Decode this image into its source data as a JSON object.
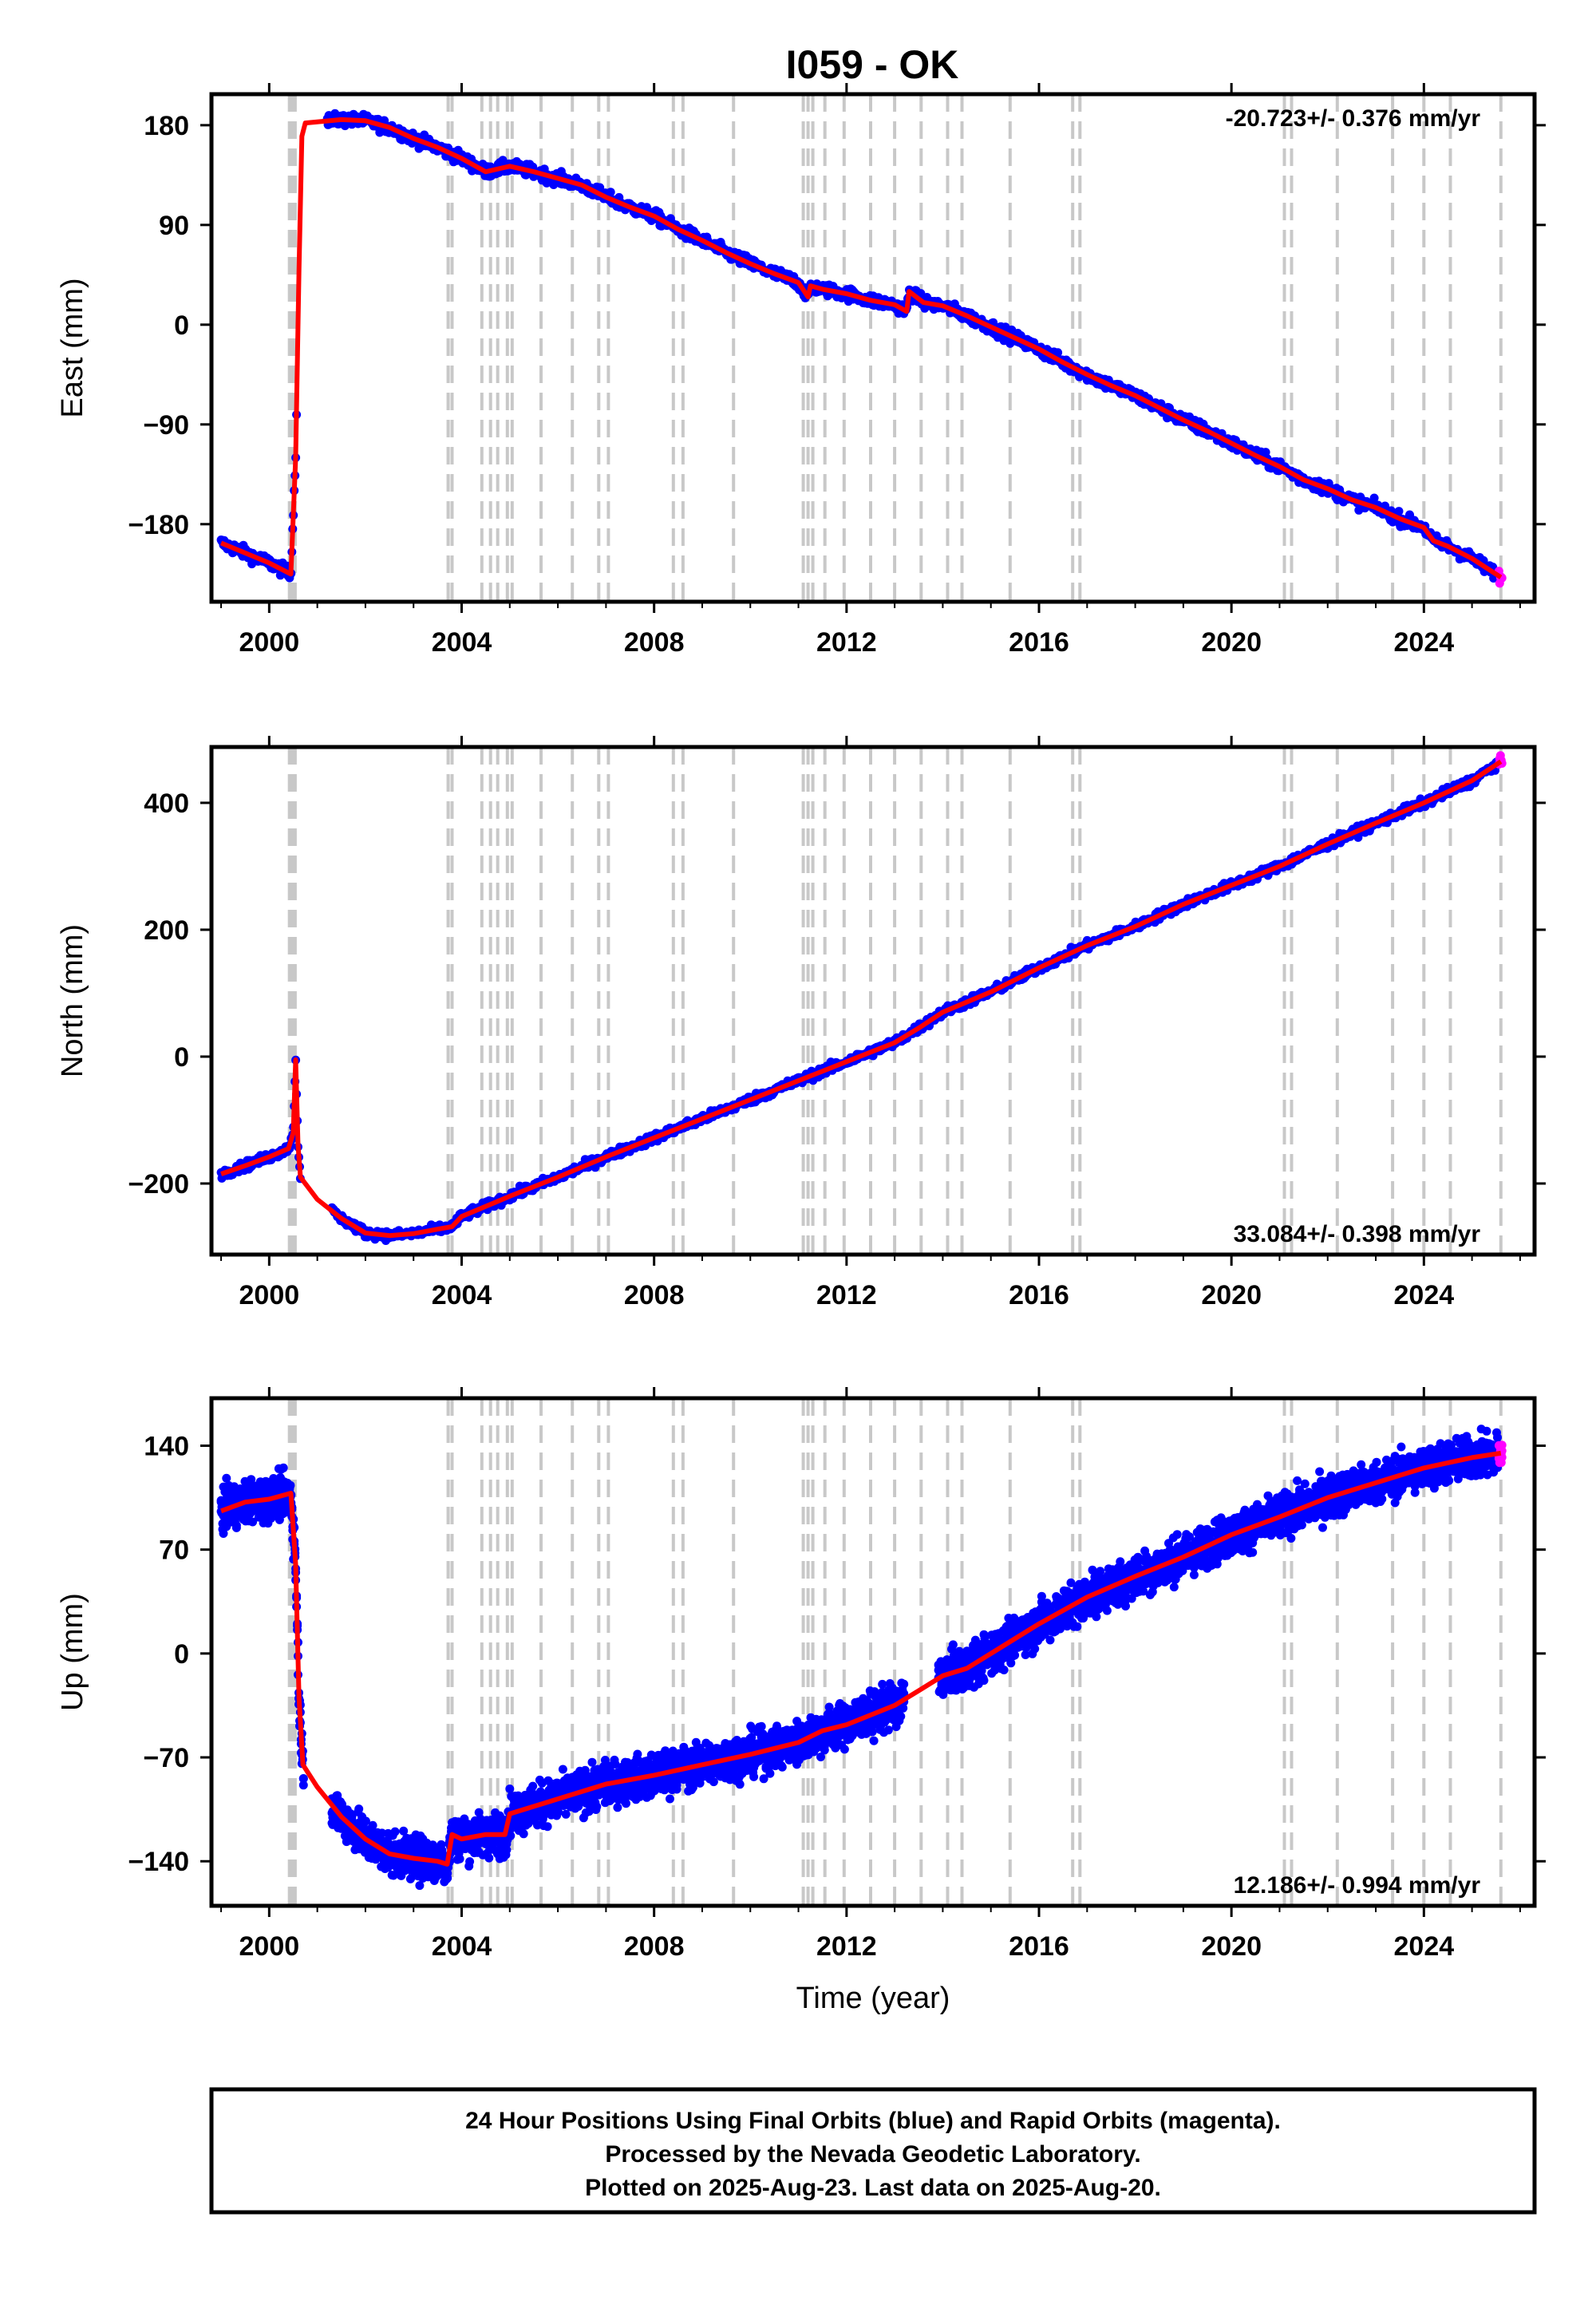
{
  "title": "I059 - OK",
  "chart_data": [
    {
      "type": "scatter",
      "component": "East",
      "ylabel": "East (mm)",
      "xlabel": "",
      "xlim": [
        1998.8,
        2026.3
      ],
      "ylim": [
        -250,
        208
      ],
      "xticks": [
        2000,
        2004,
        2008,
        2012,
        2016,
        2020,
        2024
      ],
      "yticks": [
        -180,
        -90,
        0,
        90,
        180
      ],
      "ytick_labels": [
        "−180",
        "−90",
        "0",
        "90",
        "180"
      ],
      "rate": "-20.723+/- 0.376 mm/yr",
      "trend": [
        [
          1999.0,
          -197
        ],
        [
          1999.5,
          -206
        ],
        [
          2000.0,
          -215
        ],
        [
          2000.45,
          -225
        ],
        [
          2000.55,
          -120
        ],
        [
          2000.62,
          50
        ],
        [
          2000.68,
          170
        ],
        [
          2000.75,
          182
        ],
        [
          2001.5,
          185
        ],
        [
          2002.0,
          184
        ],
        [
          2002.5,
          178
        ],
        [
          2003.0,
          168
        ],
        [
          2003.5,
          160
        ],
        [
          2004.0,
          150
        ],
        [
          2004.5,
          138
        ],
        [
          2005.0,
          143
        ],
        [
          2005.5,
          138
        ],
        [
          2006.0,
          132
        ],
        [
          2006.5,
          126
        ],
        [
          2007.0,
          115
        ],
        [
          2007.5,
          106
        ],
        [
          2008.0,
          98
        ],
        [
          2008.5,
          86
        ],
        [
          2009.0,
          76
        ],
        [
          2009.5,
          65
        ],
        [
          2010.0,
          55
        ],
        [
          2010.5,
          46
        ],
        [
          2011.0,
          38
        ],
        [
          2011.2,
          25
        ],
        [
          2011.25,
          35
        ],
        [
          2011.5,
          32
        ],
        [
          2012.0,
          28
        ],
        [
          2012.5,
          22
        ],
        [
          2013.0,
          18
        ],
        [
          2013.25,
          12
        ],
        [
          2013.3,
          30
        ],
        [
          2013.6,
          20
        ],
        [
          2014.0,
          17
        ],
        [
          2014.5,
          8
        ],
        [
          2015.0,
          -2
        ],
        [
          2015.5,
          -12
        ],
        [
          2016.0,
          -22
        ],
        [
          2016.5,
          -34
        ],
        [
          2017.0,
          -45
        ],
        [
          2017.5,
          -55
        ],
        [
          2018.0,
          -64
        ],
        [
          2018.5,
          -75
        ],
        [
          2019.0,
          -86
        ],
        [
          2019.5,
          -96
        ],
        [
          2020.0,
          -107
        ],
        [
          2020.5,
          -118
        ],
        [
          2021.0,
          -128
        ],
        [
          2021.5,
          -140
        ],
        [
          2022.0,
          -148
        ],
        [
          2022.5,
          -158
        ],
        [
          2023.0,
          -165
        ],
        [
          2023.5,
          -175
        ],
        [
          2024.0,
          -183
        ],
        [
          2024.2,
          -195
        ],
        [
          2024.5,
          -200
        ],
        [
          2025.0,
          -211
        ],
        [
          2025.6,
          -228
        ]
      ],
      "gaps": [
        [
          2000.58,
          2001.2
        ]
      ],
      "noise": 4,
      "rapid_from": 2025.55
    },
    {
      "type": "scatter",
      "component": "North",
      "ylabel": "North (mm)",
      "xlabel": "",
      "xlim": [
        1998.8,
        2026.3
      ],
      "ylim": [
        -312,
        488
      ],
      "xticks": [
        2000,
        2004,
        2008,
        2012,
        2016,
        2020,
        2024
      ],
      "yticks": [
        -200,
        0,
        200,
        400
      ],
      "ytick_labels": [
        "−200",
        "0",
        "200",
        "400"
      ],
      "rate": "33.084+/- 0.398 mm/yr",
      "trend": [
        [
          1999.0,
          -185
        ],
        [
          1999.5,
          -172
        ],
        [
          2000.0,
          -158
        ],
        [
          2000.4,
          -145
        ],
        [
          2000.5,
          -120
        ],
        [
          2000.55,
          -5
        ],
        [
          2000.6,
          -140
        ],
        [
          2000.65,
          -190
        ],
        [
          2001.0,
          -225
        ],
        [
          2001.5,
          -255
        ],
        [
          2002.0,
          -278
        ],
        [
          2002.5,
          -282
        ],
        [
          2003.0,
          -279
        ],
        [
          2003.5,
          -272
        ],
        [
          2003.8,
          -268
        ],
        [
          2004.0,
          -252
        ],
        [
          2005.0,
          -220
        ],
        [
          2006.0,
          -190
        ],
        [
          2007.0,
          -158
        ],
        [
          2008.0,
          -128
        ],
        [
          2009.0,
          -98
        ],
        [
          2010.0,
          -68
        ],
        [
          2011.0,
          -38
        ],
        [
          2012.0,
          -8
        ],
        [
          2013.0,
          22
        ],
        [
          2013.5,
          45
        ],
        [
          2014.0,
          70
        ],
        [
          2015.0,
          102
        ],
        [
          2016.0,
          140
        ],
        [
          2017.0,
          175
        ],
        [
          2018.0,
          205
        ],
        [
          2019.0,
          240
        ],
        [
          2020.0,
          270
        ],
        [
          2021.0,
          300
        ],
        [
          2022.0,
          335
        ],
        [
          2023.0,
          368
        ],
        [
          2024.0,
          400
        ],
        [
          2025.0,
          435
        ],
        [
          2025.6,
          465
        ]
      ],
      "gaps": [
        [
          2000.66,
          2001.3
        ]
      ],
      "noise": 5,
      "rapid_from": 2025.55
    },
    {
      "type": "scatter",
      "component": "Up",
      "ylabel": "Up (mm)",
      "xlabel": "Time (year)",
      "xlim": [
        1998.8,
        2026.3
      ],
      "ylim": [
        -170,
        172
      ],
      "xticks": [
        2000,
        2004,
        2008,
        2012,
        2016,
        2020,
        2024
      ],
      "yticks": [
        -140,
        -70,
        0,
        70,
        140
      ],
      "ytick_labels": [
        "−140",
        "−70",
        "0",
        "70",
        "140"
      ],
      "rate": "12.186+/- 0.994 mm/yr",
      "trend": [
        [
          1999.0,
          96
        ],
        [
          1999.5,
          102
        ],
        [
          2000.0,
          104
        ],
        [
          2000.45,
          108
        ],
        [
          2000.55,
          60
        ],
        [
          2000.62,
          -30
        ],
        [
          2000.7,
          -75
        ],
        [
          2001.0,
          -90
        ],
        [
          2001.5,
          -110
        ],
        [
          2002.0,
          -125
        ],
        [
          2002.5,
          -135
        ],
        [
          2003.0,
          -138
        ],
        [
          2003.5,
          -140
        ],
        [
          2003.7,
          -142
        ],
        [
          2003.8,
          -122
        ],
        [
          2004.0,
          -125
        ],
        [
          2004.5,
          -122
        ],
        [
          2004.9,
          -122
        ],
        [
          2005.0,
          -108
        ],
        [
          2006.0,
          -98
        ],
        [
          2007.0,
          -88
        ],
        [
          2008.0,
          -82
        ],
        [
          2009.0,
          -75
        ],
        [
          2010.0,
          -68
        ],
        [
          2011.0,
          -60
        ],
        [
          2011.5,
          -52
        ],
        [
          2012.0,
          -48
        ],
        [
          2013.0,
          -35
        ],
        [
          2013.5,
          -25
        ],
        [
          2014.0,
          -15
        ],
        [
          2014.5,
          -10
        ],
        [
          2015.0,
          0
        ],
        [
          2016.0,
          20
        ],
        [
          2017.0,
          38
        ],
        [
          2018.0,
          52
        ],
        [
          2019.0,
          65
        ],
        [
          2020.0,
          80
        ],
        [
          2021.0,
          92
        ],
        [
          2022.0,
          105
        ],
        [
          2023.0,
          115
        ],
        [
          2024.0,
          125
        ],
        [
          2025.0,
          132
        ],
        [
          2025.6,
          135
        ]
      ],
      "gaps": [
        [
          2000.72,
          2001.3
        ],
        [
          2013.2,
          2013.9
        ]
      ],
      "noise": 10,
      "rapid_from": 2025.55
    }
  ],
  "event_lines": [
    2000.42,
    2000.46,
    2000.5,
    2000.54,
    2003.72,
    2003.8,
    2004.42,
    2004.6,
    2004.75,
    2004.95,
    2005.05,
    2005.65,
    2006.3,
    2006.85,
    2007.05,
    2008.4,
    2008.6,
    2009.65,
    2011.1,
    2011.2,
    2011.3,
    2011.55,
    2011.95,
    2012.5,
    2013.0,
    2013.55,
    2014.1,
    2014.4,
    2015.4,
    2016.7,
    2016.85,
    2021.1,
    2021.25,
    2022.2,
    2023.35,
    2024.0,
    2024.55,
    2025.6
  ],
  "colors": {
    "final": "#0000ff",
    "rapid": "#ff00ff",
    "trend": "#ff0000",
    "events": "#c8c8c8",
    "frame": "#000000"
  },
  "footer": {
    "line1": "24 Hour Positions Using Final Orbits (blue) and Rapid Orbits (magenta).",
    "line2": "Processed by the Nevada Geodetic Laboratory.",
    "line3": "Plotted on 2025-Aug-23. Last data on 2025-Aug-20."
  }
}
